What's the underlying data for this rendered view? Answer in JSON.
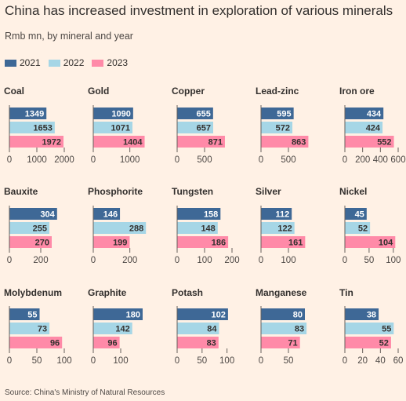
{
  "title": "China has increased investment in exploration of various minerals",
  "subtitle": "Rmb mn, by mineral and year",
  "source": "Source: China's Ministry of Natural Resources",
  "colors": {
    "2021": "#3e6896",
    "2022": "#a6d6e6",
    "2023": "#ff8aa8",
    "background": "#fff1e5",
    "axis": "#66605c"
  },
  "chart_data": {
    "type": "bar",
    "orientation": "horizontal",
    "layout": "small-multiples",
    "legend": [
      "2021",
      "2022",
      "2023"
    ],
    "legend_position": "top-left",
    "grid": false,
    "panels": [
      {
        "name": "Coal",
        "values": [
          1349,
          1653,
          1972
        ],
        "xlim": [
          0,
          2000
        ],
        "ticks": [
          "0",
          "1000",
          "2000"
        ]
      },
      {
        "name": "Gold",
        "values": [
          1090,
          1071,
          1404
        ],
        "xlim": [
          0,
          1500
        ],
        "ticks": [
          "0",
          "1000"
        ]
      },
      {
        "name": "Copper",
        "values": [
          655,
          657,
          871
        ],
        "xlim": [
          0,
          1000
        ],
        "ticks": [
          "0",
          "500"
        ]
      },
      {
        "name": "Lead-zinc",
        "values": [
          595,
          572,
          863
        ],
        "xlim": [
          0,
          1000
        ],
        "ticks": [
          "0",
          "500"
        ]
      },
      {
        "name": "Iron ore",
        "values": [
          434,
          424,
          552
        ],
        "xlim": [
          0,
          600
        ],
        "ticks": [
          "0",
          "200",
          "400",
          "600"
        ]
      },
      {
        "name": "Bauxite",
        "values": [
          304,
          255,
          270
        ],
        "xlim": [
          0,
          350
        ],
        "ticks": [
          "0",
          "200"
        ]
      },
      {
        "name": "Phosphorite",
        "values": [
          146,
          288,
          199
        ],
        "xlim": [
          0,
          300
        ],
        "ticks": [
          "0",
          "200"
        ]
      },
      {
        "name": "Tungsten",
        "values": [
          158,
          148,
          186
        ],
        "xlim": [
          0,
          200
        ],
        "ticks": [
          "0",
          "100",
          "200"
        ]
      },
      {
        "name": "Silver",
        "values": [
          112,
          122,
          161
        ],
        "xlim": [
          0,
          200
        ],
        "ticks": [
          "0",
          "100"
        ]
      },
      {
        "name": "Nickel",
        "values": [
          45,
          52,
          104
        ],
        "xlim": [
          0,
          110
        ],
        "ticks": [
          "0",
          "50",
          "100"
        ]
      },
      {
        "name": "Molybdenum",
        "values": [
          55,
          73,
          96
        ],
        "xlim": [
          0,
          100
        ],
        "ticks": [
          "0",
          "50",
          "100"
        ]
      },
      {
        "name": "Graphite",
        "values": [
          180,
          142,
          96
        ],
        "xlim": [
          0,
          200
        ],
        "ticks": [
          "0",
          "100"
        ]
      },
      {
        "name": "Potash",
        "values": [
          102,
          84,
          83
        ],
        "xlim": [
          0,
          110
        ],
        "ticks": [
          "0",
          "50",
          "100"
        ]
      },
      {
        "name": "Manganese",
        "values": [
          80,
          83,
          71
        ],
        "xlim": [
          0,
          100
        ],
        "ticks": [
          "0",
          "50"
        ]
      },
      {
        "name": "Tin",
        "values": [
          38,
          55,
          52
        ],
        "xlim": [
          0,
          60
        ],
        "ticks": [
          "0",
          "20",
          "40",
          "60"
        ]
      }
    ]
  }
}
